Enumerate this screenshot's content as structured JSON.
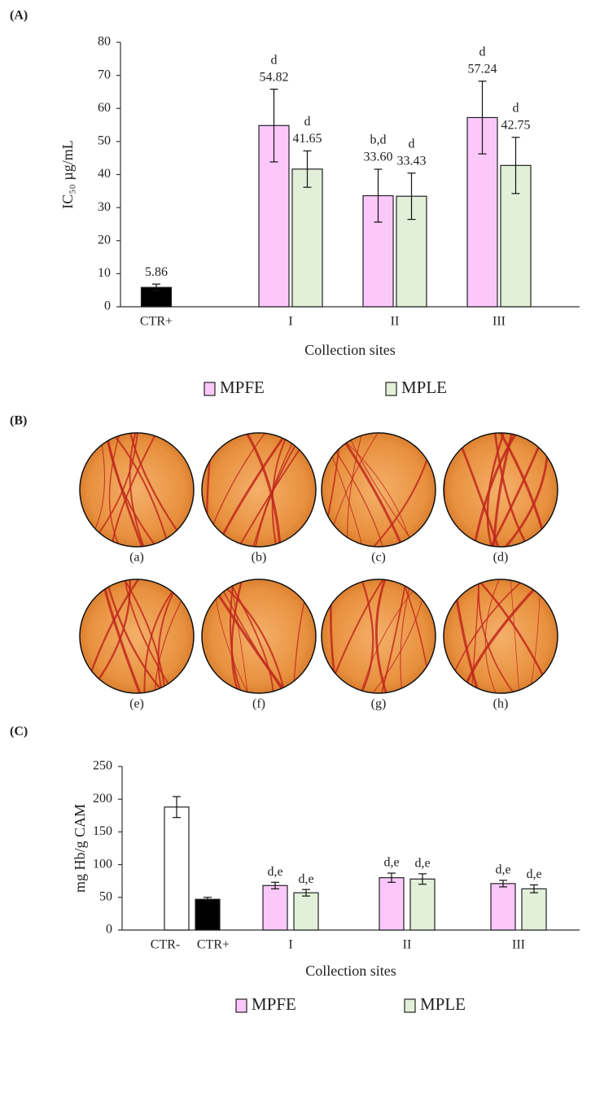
{
  "figure": {
    "panel_labels": [
      "(A)",
      "(B)",
      "(C)"
    ],
    "image_labels": [
      "(a)",
      "(b)",
      "(c)",
      "(d)",
      "(e)",
      "(f)",
      "(g)",
      "(h)"
    ]
  },
  "chart_data": [
    {
      "type": "bar",
      "y_label": "IC₅₀ µg/mL",
      "x_label": "Collection sites",
      "categories": [
        "CTR+",
        "I",
        "II",
        "III"
      ],
      "series": [
        {
          "color": "#000000",
          "values": [
            5.86,
            null,
            null,
            null
          ],
          "errors": [
            1,
            null,
            null,
            null
          ],
          "value_labels": [
            "5.86",
            null,
            null,
            null
          ]
        },
        {
          "name": "MPFE",
          "color": "#fcc8fc",
          "values": [
            null,
            54.82,
            33.6,
            57.24
          ],
          "errors": [
            null,
            11,
            8,
            11
          ],
          "value_labels": [
            null,
            "54.82",
            "33.60",
            "57.24"
          ],
          "letters": [
            null,
            "d",
            "b,d",
            "d"
          ]
        },
        {
          "name": "MPLE",
          "color": "#e2f0d9",
          "values": [
            null,
            41.65,
            33.43,
            42.75
          ],
          "errors": [
            null,
            5.5,
            7,
            8.5
          ],
          "value_labels": [
            null,
            "41.65",
            "33.43",
            "42.75"
          ],
          "letters": [
            null,
            "d",
            "d",
            "d"
          ]
        }
      ],
      "ylim": [
        0,
        80
      ],
      "yticks": [
        0,
        10,
        20,
        30,
        40,
        50,
        60,
        70,
        80
      ],
      "legend": "bottom"
    },
    {
      "type": "bar",
      "y_label": "mg Hb/g CAM",
      "x_label": "Collection sites",
      "categories": [
        "CTR-",
        "CTR+",
        "I",
        "II",
        "III"
      ],
      "series": [
        {
          "color": "#ffffff",
          "values": [
            188,
            null,
            null,
            null,
            null
          ],
          "errors": [
            16,
            null,
            null,
            null,
            null
          ]
        },
        {
          "color": "#000000",
          "values": [
            null,
            47,
            null,
            null,
            null
          ],
          "errors": [
            null,
            3,
            null,
            null,
            null
          ]
        },
        {
          "name": "MPFE",
          "color": "#fcc8fc",
          "values": [
            null,
            null,
            68,
            80,
            71
          ],
          "errors": [
            null,
            null,
            5,
            7,
            5
          ],
          "letters": [
            null,
            null,
            "d,e",
            "d,e",
            "d,e"
          ]
        },
        {
          "name": "MPLE",
          "color": "#e2f0d9",
          "values": [
            null,
            null,
            57,
            78,
            63
          ],
          "errors": [
            null,
            null,
            5,
            8,
            6
          ],
          "letters": [
            null,
            null,
            "d,e",
            "d,e",
            "d,e"
          ]
        }
      ],
      "ylim": [
        0,
        250
      ],
      "yticks": [
        0,
        50,
        100,
        150,
        200,
        250
      ],
      "legend": "bottom"
    }
  ]
}
